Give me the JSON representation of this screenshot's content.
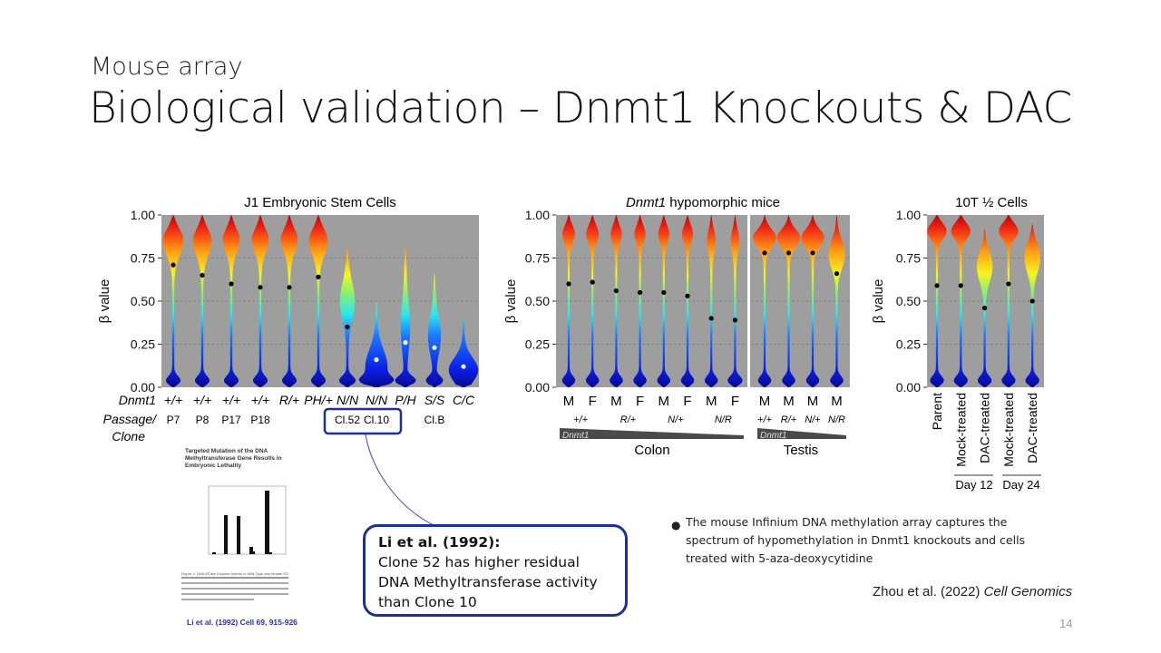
{
  "slide": {
    "subtitle": "Mouse array",
    "title": "Biological validation – Dnmt1 Knockouts & DAC",
    "page_number": "14"
  },
  "callout": {
    "heading": "Li et al. (1992):",
    "body": "Clone 52 has higher residual DNA Methyltransferase activity than Clone 10"
  },
  "bullet": "The mouse Infinium DNA methylation array captures the spectrum of hypomethylation in Dnmt1 knockouts and cells treated with 5-aza-deoxycytidine",
  "citation": {
    "authors": "Zhou et al. (2022) ",
    "journal": "Cell Genomics"
  },
  "paper_figure": {
    "title": "Targeted Mutation of the DNA Methyltransferase Gene Results in Embryonic Lethality",
    "caption": "Figure 4. DNA MTase Enzyme Activity in Wild-Type and Mutant ES Cell Lysates",
    "reference": "Li et al. (1992) Cell 69, 915-926"
  },
  "colors": {
    "panel_bg": "#9e9e9e",
    "callout_border": "#1f2f9a",
    "median_dark": "#000000",
    "median_light": "#e8f4ff"
  },
  "chart_data": [
    {
      "type": "violin",
      "title": "J1 Embryonic Stem Cells",
      "ylabel": "β value",
      "ylim": [
        0,
        1
      ],
      "yticks": [
        "0.00",
        "0.25",
        "0.50",
        "0.75",
        "1.00"
      ],
      "row_labels": [
        "Dnmt1",
        "Passage/",
        "Clone"
      ],
      "highlight_box": "Cl.52 Cl.10",
      "violins": [
        {
          "genotype": "+/+",
          "passage": "P7",
          "median": 0.71,
          "mode": 0.85,
          "spread": 0.12,
          "mode_width": 10,
          "max": 1.0,
          "bulb": 7,
          "dot": "dark"
        },
        {
          "genotype": "+/+",
          "passage": "P8",
          "median": 0.65,
          "mode": 0.85,
          "spread": 0.12,
          "mode_width": 9,
          "max": 1.0,
          "bulb": 7,
          "dot": "dark"
        },
        {
          "genotype": "+/+",
          "passage": "P17",
          "median": 0.6,
          "mode": 0.86,
          "spread": 0.11,
          "mode_width": 8,
          "max": 1.0,
          "bulb": 7,
          "dot": "dark"
        },
        {
          "genotype": "+/+",
          "passage": "P18",
          "median": 0.58,
          "mode": 0.86,
          "spread": 0.11,
          "mode_width": 8,
          "max": 1.0,
          "bulb": 7,
          "dot": "dark"
        },
        {
          "genotype": "R/+",
          "passage": "",
          "median": 0.58,
          "mode": 0.86,
          "spread": 0.11,
          "mode_width": 8,
          "max": 1.0,
          "bulb": 7,
          "dot": "dark"
        },
        {
          "genotype": "PH/+",
          "passage": "",
          "median": 0.64,
          "mode": 0.85,
          "spread": 0.12,
          "mode_width": 9,
          "max": 1.0,
          "bulb": 7,
          "dot": "dark"
        },
        {
          "genotype": "N/N",
          "passage": "Cl.52",
          "median": 0.35,
          "mode": 0.5,
          "spread": 0.15,
          "mode_width": 7,
          "max": 0.82,
          "bulb": 8,
          "dot": "dark"
        },
        {
          "genotype": "N/N",
          "passage": "Cl.10",
          "median": 0.16,
          "mode": 0.12,
          "spread": 0.14,
          "mode_width": 11,
          "max": 0.5,
          "bulb": 10,
          "dot": "light"
        },
        {
          "genotype": "P/H",
          "passage": "",
          "median": 0.26,
          "mode": 0.35,
          "spread": 0.2,
          "mode_width": 4,
          "max": 0.82,
          "bulb": 10,
          "dot": "light"
        },
        {
          "genotype": "S/S",
          "passage": "Cl.B",
          "median": 0.23,
          "mode": 0.3,
          "spread": 0.15,
          "mode_width": 6,
          "max": 0.66,
          "bulb": 8,
          "dot": "light"
        },
        {
          "genotype": "C/C",
          "passage": "",
          "median": 0.12,
          "mode": 0.1,
          "spread": 0.1,
          "mode_width": 15,
          "max": 0.42,
          "bulb": 0,
          "dot": "light"
        }
      ]
    },
    {
      "type": "violin",
      "title_italic": "Dnmt1",
      "title": " hypomorphic mice",
      "ylabel": "β value",
      "ylim": [
        0,
        1
      ],
      "yticks": [
        "0.00",
        "0.25",
        "0.50",
        "0.75",
        "1.00"
      ],
      "gradient_label": "Dnmt1",
      "groups": [
        {
          "tissue": "Colon",
          "genotypes": [
            "+/+",
            "R/+",
            "N/+",
            "N/R"
          ],
          "violins": [
            {
              "sex": "M",
              "median": 0.6,
              "mode": 0.9,
              "spread": 0.08,
              "mode_width": 7,
              "max": 1.0,
              "bulb": 7
            },
            {
              "sex": "F",
              "median": 0.61,
              "mode": 0.9,
              "spread": 0.08,
              "mode_width": 7,
              "max": 1.0,
              "bulb": 7
            },
            {
              "sex": "M",
              "median": 0.56,
              "mode": 0.9,
              "spread": 0.08,
              "mode_width": 6,
              "max": 1.0,
              "bulb": 7
            },
            {
              "sex": "F",
              "median": 0.55,
              "mode": 0.9,
              "spread": 0.08,
              "mode_width": 6,
              "max": 1.0,
              "bulb": 7
            },
            {
              "sex": "M",
              "median": 0.55,
              "mode": 0.9,
              "spread": 0.08,
              "mode_width": 6,
              "max": 1.0,
              "bulb": 7
            },
            {
              "sex": "F",
              "median": 0.53,
              "mode": 0.9,
              "spread": 0.08,
              "mode_width": 6,
              "max": 1.0,
              "bulb": 7
            },
            {
              "sex": "M",
              "median": 0.4,
              "mode": 0.85,
              "spread": 0.1,
              "mode_width": 4,
              "max": 1.0,
              "bulb": 7
            },
            {
              "sex": "F",
              "median": 0.39,
              "mode": 0.85,
              "spread": 0.1,
              "mode_width": 4,
              "max": 1.0,
              "bulb": 8
            }
          ]
        },
        {
          "tissue": "Testis",
          "genotypes": [
            "+/+",
            "R/+",
            "N/+",
            "N/R"
          ],
          "violins": [
            {
              "sex": "M",
              "median": 0.78,
              "mode": 0.87,
              "spread": 0.08,
              "mode_width": 13,
              "max": 1.0,
              "bulb": 7
            },
            {
              "sex": "M",
              "median": 0.78,
              "mode": 0.87,
              "spread": 0.08,
              "mode_width": 13,
              "max": 1.0,
              "bulb": 7
            },
            {
              "sex": "M",
              "median": 0.78,
              "mode": 0.87,
              "spread": 0.08,
              "mode_width": 13,
              "max": 1.0,
              "bulb": 7
            },
            {
              "sex": "M",
              "median": 0.66,
              "mode": 0.77,
              "spread": 0.11,
              "mode_width": 9,
              "max": 1.0,
              "bulb": 7
            }
          ]
        }
      ]
    },
    {
      "type": "violin",
      "title": "10T ½ Cells",
      "ylabel": "β value",
      "ylim": [
        0,
        1
      ],
      "yticks": [
        "0.00",
        "0.25",
        "0.50",
        "0.75",
        "1.00"
      ],
      "violins": [
        {
          "label": "Parent",
          "median": 0.59,
          "mode": 0.92,
          "spread": 0.07,
          "mode_width": 12,
          "max": 1.0,
          "bulb": 7
        },
        {
          "label": "Mock-treated",
          "median": 0.59,
          "mode": 0.92,
          "spread": 0.07,
          "mode_width": 12,
          "max": 1.0,
          "bulb": 7
        },
        {
          "label": "DAC-treated",
          "median": 0.46,
          "mode": 0.7,
          "spread": 0.12,
          "mode_width": 8,
          "max": 0.92,
          "bulb": 7
        },
        {
          "label": "Mock-treated",
          "median": 0.6,
          "mode": 0.92,
          "spread": 0.07,
          "mode_width": 12,
          "max": 1.0,
          "bulb": 7
        },
        {
          "label": "DAC-treated",
          "median": 0.5,
          "mode": 0.75,
          "spread": 0.12,
          "mode_width": 8,
          "max": 0.95,
          "bulb": 7
        }
      ],
      "brackets": [
        "Day 12",
        "Day 24"
      ]
    }
  ]
}
